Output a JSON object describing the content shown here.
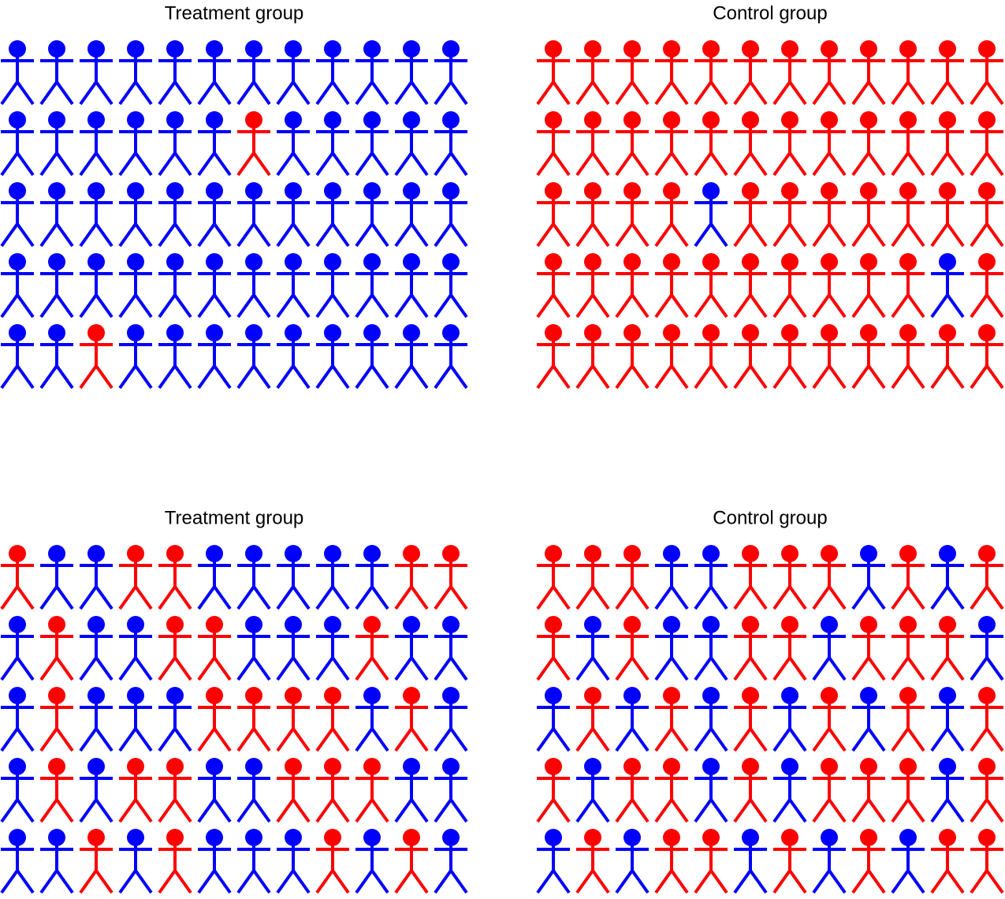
{
  "panels": [
    {
      "title": "Treatment group",
      "rows": [
        [
          "blue",
          "blue",
          "blue",
          "blue",
          "blue",
          "blue",
          "blue",
          "blue",
          "blue",
          "blue",
          "blue",
          "blue"
        ],
        [
          "blue",
          "blue",
          "blue",
          "blue",
          "blue",
          "blue",
          "red",
          "blue",
          "blue",
          "blue",
          "blue",
          "blue"
        ],
        [
          "blue",
          "blue",
          "blue",
          "blue",
          "blue",
          "blue",
          "blue",
          "blue",
          "blue",
          "blue",
          "blue",
          "blue"
        ],
        [
          "blue",
          "blue",
          "blue",
          "blue",
          "blue",
          "blue",
          "blue",
          "blue",
          "blue",
          "blue",
          "blue",
          "blue"
        ],
        [
          "blue",
          "blue",
          "red",
          "blue",
          "blue",
          "blue",
          "blue",
          "blue",
          "blue",
          "blue",
          "blue",
          "blue"
        ]
      ]
    },
    {
      "title": "Control group",
      "rows": [
        [
          "red",
          "red",
          "red",
          "red",
          "red",
          "red",
          "red",
          "red",
          "red",
          "red",
          "red",
          "red"
        ],
        [
          "red",
          "red",
          "red",
          "red",
          "red",
          "red",
          "red",
          "red",
          "red",
          "red",
          "red",
          "red"
        ],
        [
          "red",
          "red",
          "red",
          "red",
          "blue",
          "red",
          "red",
          "red",
          "red",
          "red",
          "red",
          "red"
        ],
        [
          "red",
          "red",
          "red",
          "red",
          "red",
          "red",
          "red",
          "red",
          "red",
          "red",
          "blue",
          "red"
        ],
        [
          "red",
          "red",
          "red",
          "red",
          "red",
          "red",
          "red",
          "red",
          "red",
          "red",
          "red",
          "red"
        ]
      ]
    },
    {
      "title": "Treatment group",
      "rows": [
        [
          "red",
          "blue",
          "blue",
          "red",
          "red",
          "blue",
          "blue",
          "blue",
          "blue",
          "blue",
          "red",
          "red"
        ],
        [
          "blue",
          "red",
          "blue",
          "blue",
          "red",
          "red",
          "blue",
          "blue",
          "blue",
          "red",
          "blue",
          "blue"
        ],
        [
          "blue",
          "red",
          "blue",
          "blue",
          "blue",
          "red",
          "red",
          "red",
          "red",
          "blue",
          "red",
          "blue"
        ],
        [
          "blue",
          "red",
          "blue",
          "red",
          "red",
          "blue",
          "blue",
          "red",
          "red",
          "red",
          "blue",
          "blue"
        ],
        [
          "blue",
          "blue",
          "red",
          "blue",
          "red",
          "blue",
          "blue",
          "blue",
          "red",
          "blue",
          "red",
          "blue"
        ]
      ]
    },
    {
      "title": "Control group",
      "rows": [
        [
          "red",
          "red",
          "red",
          "blue",
          "blue",
          "red",
          "red",
          "red",
          "blue",
          "red",
          "blue",
          "red"
        ],
        [
          "red",
          "blue",
          "red",
          "blue",
          "blue",
          "red",
          "red",
          "blue",
          "red",
          "red",
          "red",
          "blue"
        ],
        [
          "blue",
          "red",
          "blue",
          "red",
          "blue",
          "red",
          "blue",
          "red",
          "blue",
          "red",
          "blue",
          "red"
        ],
        [
          "red",
          "blue",
          "red",
          "red",
          "blue",
          "red",
          "blue",
          "red",
          "red",
          "red",
          "blue",
          "red"
        ],
        [
          "blue",
          "red",
          "blue",
          "red",
          "red",
          "blue",
          "red",
          "blue",
          "red",
          "blue",
          "red",
          "red"
        ]
      ]
    }
  ]
}
